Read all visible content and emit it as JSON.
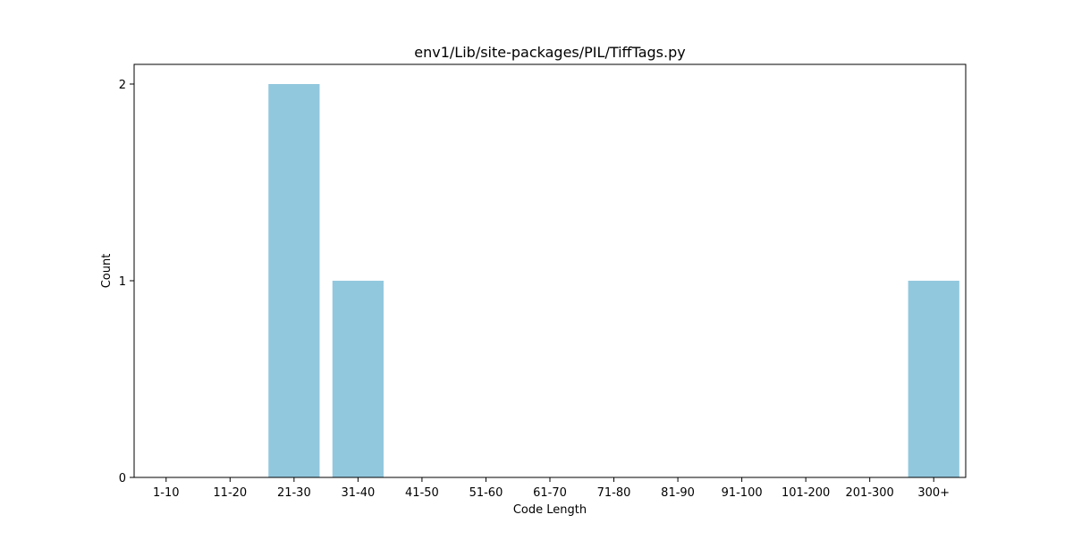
{
  "chart_data": {
    "type": "bar",
    "title": "env1/Lib/site-packages/PIL/TiffTags.py",
    "xlabel": "Code Length",
    "ylabel": "Count",
    "categories": [
      "1-10",
      "11-20",
      "21-30",
      "31-40",
      "41-50",
      "51-60",
      "61-70",
      "71-80",
      "81-90",
      "91-100",
      "101-200",
      "201-300",
      "300+"
    ],
    "values": [
      0,
      0,
      2,
      1,
      0,
      0,
      0,
      0,
      0,
      0,
      0,
      0,
      1
    ],
    "yticks": [
      0,
      1,
      2
    ],
    "ylim": [
      0,
      2.1
    ],
    "grid": false,
    "legend": "none",
    "bar_color": "#92c8de"
  }
}
